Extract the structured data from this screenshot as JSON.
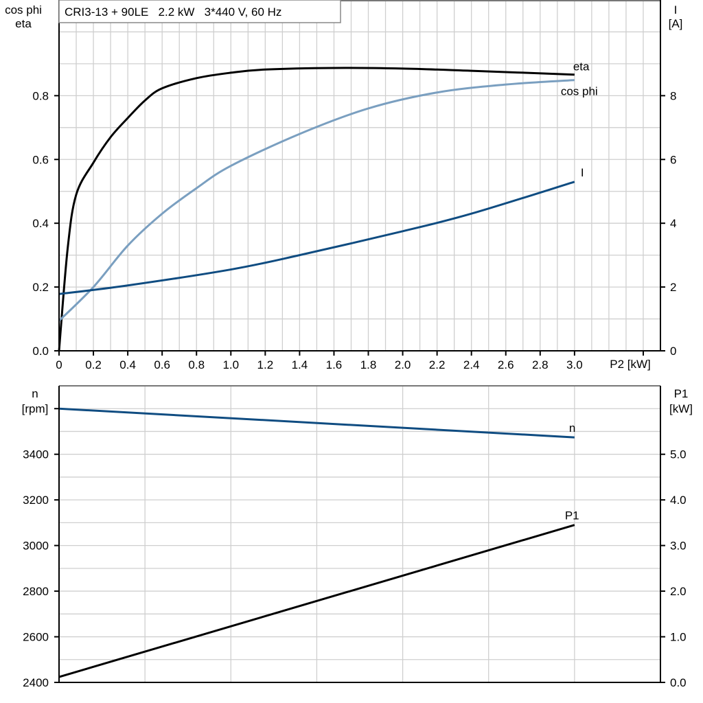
{
  "chart_data": [
    {
      "type": "line",
      "title": "CRI3-13 + 90LE   2.2 kW   3*440 V, 60 Hz",
      "xlabel": "P2 [kW]",
      "ylabel_left": [
        "cos phi",
        "eta"
      ],
      "ylabel_right": [
        "I",
        "[A]"
      ],
      "xlim": [
        0,
        3.5
      ],
      "ylim_left": [
        0,
        1.1
      ],
      "ylim_right": [
        0,
        11
      ],
      "x_ticks": [
        "0",
        "0.2",
        "0.4",
        "0.6",
        "0.8",
        "1.0",
        "1.2",
        "1.4",
        "1.6",
        "1.8",
        "2.0",
        "2.2",
        "2.4",
        "2.6",
        "2.8",
        "3.0"
      ],
      "y_left_ticks": [
        "0.0",
        "0.2",
        "0.4",
        "0.6",
        "0.8"
      ],
      "y_right_ticks": [
        "0",
        "2",
        "4",
        "6",
        "8"
      ],
      "grid": true,
      "series": [
        {
          "name": "eta",
          "axis": "left",
          "color": "#000000",
          "x": [
            0,
            0.05,
            0.1,
            0.2,
            0.3,
            0.4,
            0.5,
            0.6,
            0.8,
            1.0,
            1.2,
            1.6,
            2.0,
            2.4,
            3.0
          ],
          "y": [
            0,
            0.32,
            0.49,
            0.59,
            0.67,
            0.73,
            0.785,
            0.823,
            0.855,
            0.872,
            0.882,
            0.887,
            0.885,
            0.878,
            0.866
          ]
        },
        {
          "name": "cos phi",
          "axis": "left",
          "color": "#7a9fc0",
          "x": [
            0,
            0.2,
            0.4,
            0.6,
            0.8,
            1.0,
            1.4,
            1.8,
            2.2,
            2.6,
            3.0
          ],
          "y": [
            0.094,
            0.2,
            0.33,
            0.43,
            0.51,
            0.58,
            0.68,
            0.76,
            0.81,
            0.835,
            0.849
          ]
        },
        {
          "name": "I",
          "axis": "right",
          "color": "#0f4c81",
          "x": [
            0,
            0.4,
            1.0,
            1.4,
            2.0,
            2.4,
            3.0
          ],
          "y": [
            1.78,
            2.05,
            2.55,
            3.0,
            3.75,
            4.3,
            5.3
          ]
        }
      ]
    },
    {
      "type": "line",
      "xlim": [
        0,
        3.5
      ],
      "ylabel_left": [
        "n",
        "[rpm]"
      ],
      "ylabel_right": [
        "P1",
        "[kW]"
      ],
      "ylim_left": [
        2400,
        3700
      ],
      "ylim_right": [
        0,
        6.5
      ],
      "y_left_ticks": [
        "2400",
        "2600",
        "2800",
        "3000",
        "3200",
        "3400"
      ],
      "y_right_ticks": [
        "0.0",
        "1.0",
        "2.0",
        "3.0",
        "4.0",
        "5.0"
      ],
      "grid": true,
      "series": [
        {
          "name": "n",
          "axis": "left",
          "color": "#0f4c81",
          "x": [
            0,
            3.0
          ],
          "y": [
            3600,
            3474
          ]
        },
        {
          "name": "P1",
          "axis": "right",
          "color": "#000000",
          "x": [
            0,
            3.0
          ],
          "y": [
            0.12,
            3.45
          ]
        }
      ]
    }
  ]
}
